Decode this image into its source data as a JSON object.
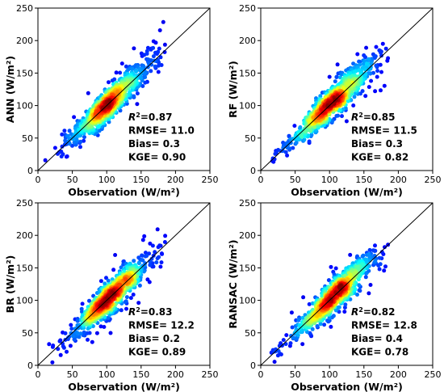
{
  "chart_data": [
    {
      "type": "scatter",
      "model": "ANN",
      "ylabel": "ANN (W/m²)",
      "xlabel": "Observation (W/m²)",
      "xlim": [
        0,
        250
      ],
      "ylim": [
        0,
        250
      ],
      "xticks": [
        "0",
        "50",
        "100",
        "150",
        "200",
        "250"
      ],
      "yticks": [
        "0",
        "50",
        "100",
        "150",
        "200",
        "250"
      ],
      "identity_line": true,
      "colormap": "jet density",
      "stats": {
        "r2": "0.87",
        "rmse": "11.0",
        "bias": "0.3",
        "kge": "0.90"
      },
      "seed": 11
    },
    {
      "type": "scatter",
      "model": "RF",
      "ylabel": "RF (W/m²)",
      "xlabel": "Observation (W/m²)",
      "xlim": [
        0,
        250
      ],
      "ylim": [
        0,
        250
      ],
      "xticks": [
        "0",
        "50",
        "100",
        "150",
        "200",
        "250"
      ],
      "yticks": [
        "0",
        "50",
        "100",
        "150",
        "200",
        "250"
      ],
      "identity_line": true,
      "colormap": "jet density",
      "stats": {
        "r2": "0.85",
        "rmse": "11.5",
        "bias": "0.3",
        "kge": "0.82"
      },
      "seed": 23
    },
    {
      "type": "scatter",
      "model": "BR",
      "ylabel": "BR (W/m²)",
      "xlabel": "Observation (W/m²)",
      "xlim": [
        0,
        250
      ],
      "ylim": [
        0,
        250
      ],
      "xticks": [
        "0",
        "50",
        "100",
        "150",
        "200",
        "250"
      ],
      "yticks": [
        "0",
        "50",
        "100",
        "150",
        "200",
        "250"
      ],
      "identity_line": true,
      "colormap": "jet density",
      "stats": {
        "r2": "0.83",
        "rmse": "12.2",
        "bias": "0.2",
        "kge": "0.89"
      },
      "seed": 37
    },
    {
      "type": "scatter",
      "model": "RANSAC",
      "ylabel": "RANSAC (W/m²)",
      "xlabel": "Observation (W/m²)",
      "xlim": [
        0,
        250
      ],
      "ylim": [
        0,
        250
      ],
      "xticks": [
        "0",
        "50",
        "100",
        "150",
        "200",
        "250"
      ],
      "yticks": [
        "0",
        "50",
        "100",
        "150",
        "200",
        "250"
      ],
      "identity_line": true,
      "colormap": "jet density",
      "stats": {
        "r2": "0.82",
        "rmse": "12.8",
        "bias": "0.4",
        "kge": "0.78"
      },
      "seed": 53
    }
  ]
}
